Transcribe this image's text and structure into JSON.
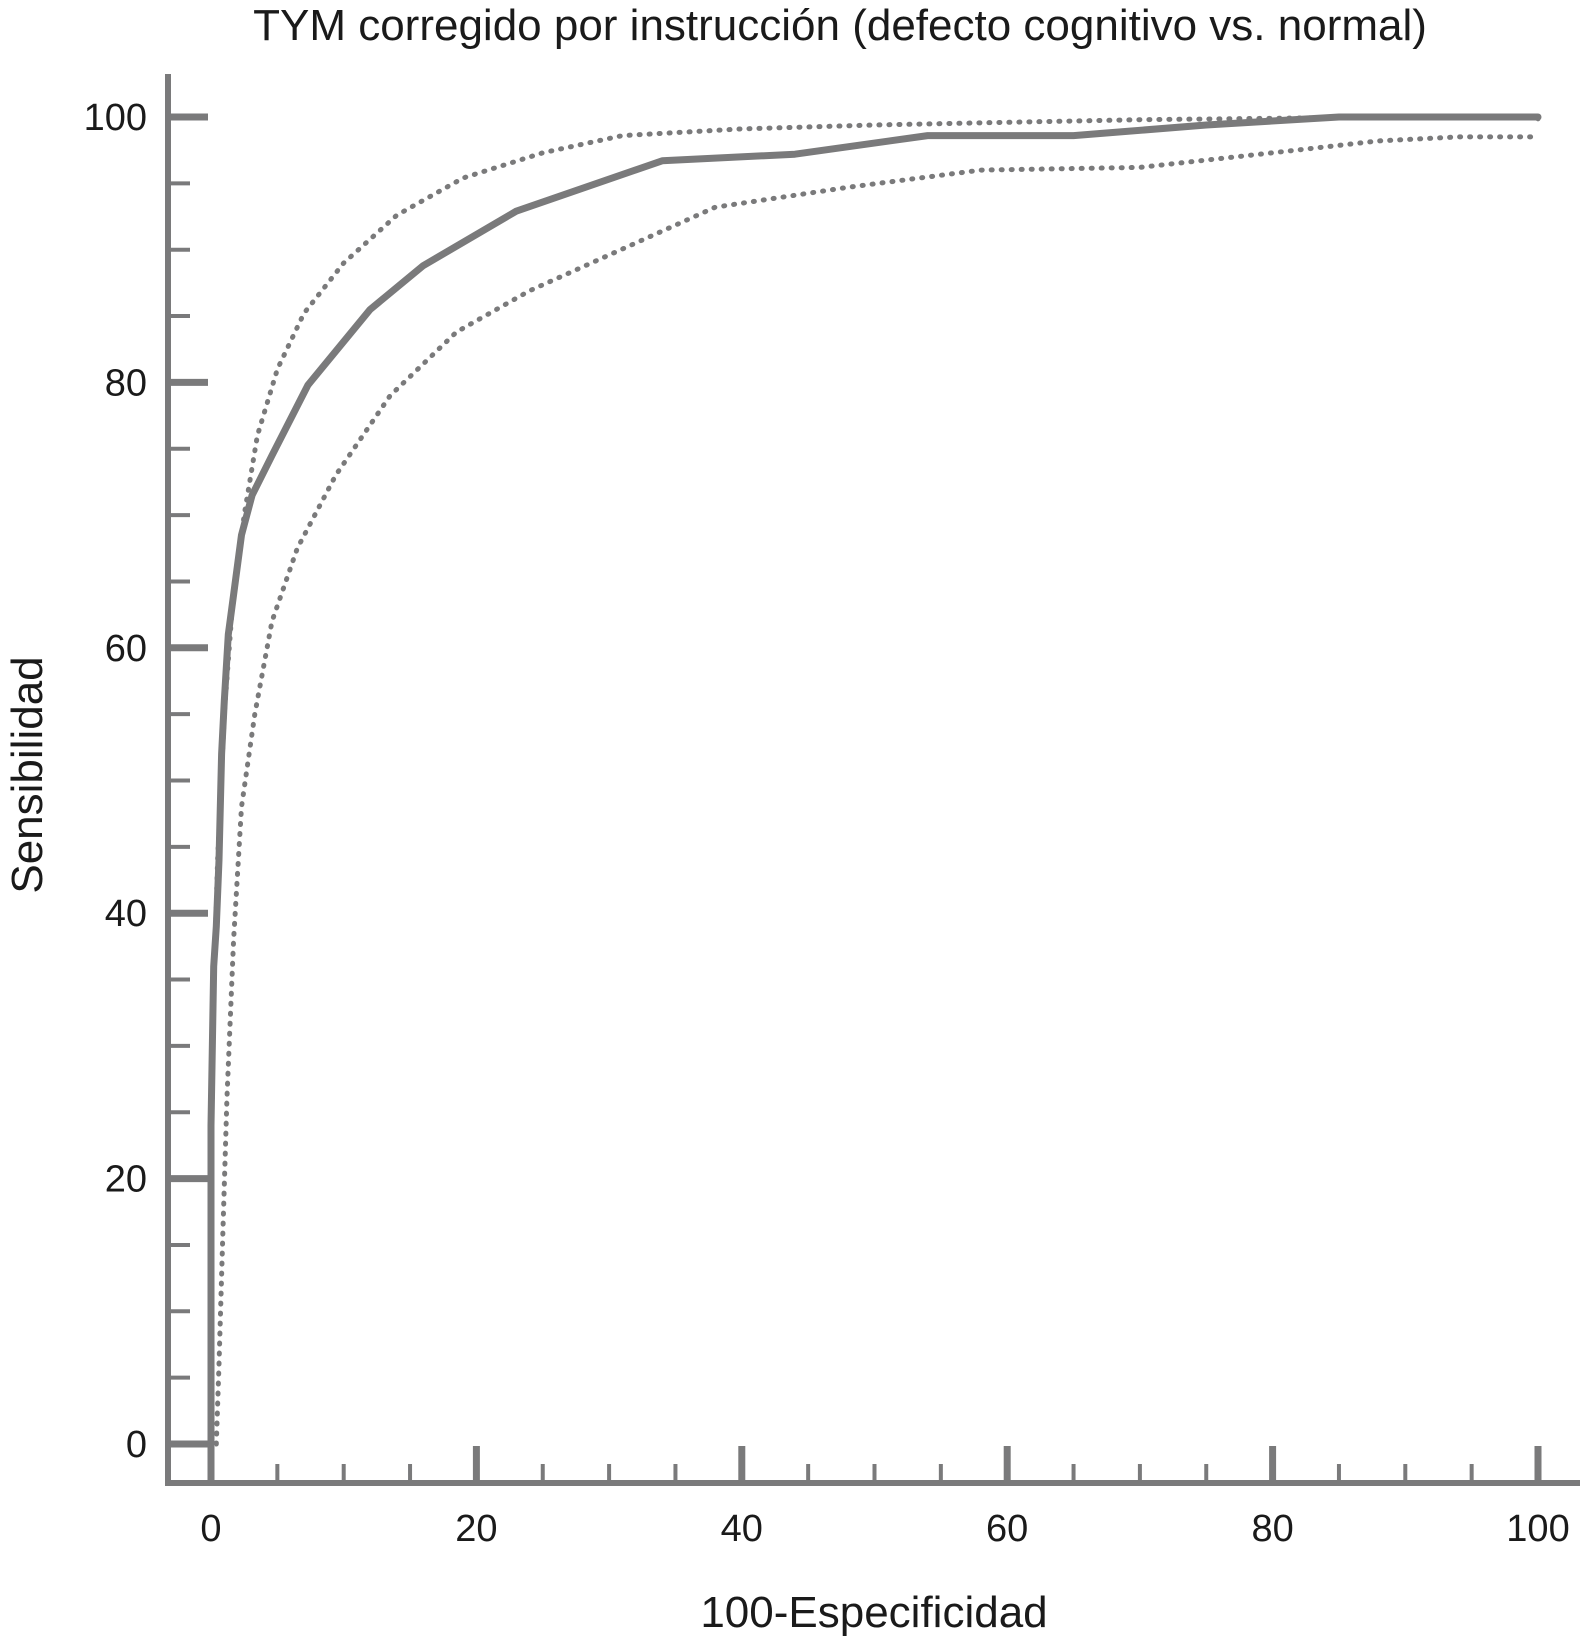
{
  "chart_data": {
    "type": "line",
    "title": "TYM corregido por instrucción (defecto cognitivo vs. normal)",
    "xlabel": "100-Especificidad",
    "ylabel": "Sensibilidad",
    "xlim": [
      0,
      100
    ],
    "ylim": [
      0,
      100
    ],
    "x_ticks": [
      "0",
      "20",
      "40",
      "60",
      "80",
      "100"
    ],
    "y_ticks": [
      "0",
      "20",
      "40",
      "60",
      "80",
      "100"
    ],
    "grid": false,
    "legend": "none",
    "colors": {
      "curve": "#7a7a7b",
      "axis": "#7a7a7b"
    },
    "series": [
      {
        "style": "solid",
        "x": [
          0,
          0,
          0.2,
          0.4,
          0.6,
          0.8,
          1,
          1.3,
          1.7,
          2.3,
          3.1,
          4.6,
          7.3,
          12,
          16,
          23,
          34,
          44,
          54,
          65,
          75,
          85,
          100
        ],
        "y": [
          0,
          24,
          36,
          39,
          44,
          52,
          56,
          61,
          64,
          68.5,
          71.5,
          74.5,
          79.8,
          85.5,
          88.8,
          92.9,
          96.7,
          97.2,
          98.6,
          98.6,
          99.4,
          100,
          100
        ]
      },
      {
        "style": "dotted",
        "x": [
          0,
          0.2,
          0.5,
          1,
          1.6,
          2.5,
          3.5,
          5,
          7,
          10,
          14,
          19,
          25,
          31,
          40,
          50,
          60,
          70,
          80,
          90,
          100,
          100
        ],
        "y": [
          20,
          34,
          44,
          55,
          63,
          70,
          76,
          81,
          85.2,
          89,
          92.6,
          95.4,
          97.3,
          98.6,
          99.1,
          99.4,
          99.6,
          99.8,
          99.9,
          100,
          100,
          99.2
        ]
      },
      {
        "style": "dotted",
        "x": [
          0.4,
          0.6,
          0.9,
          1.2,
          1.7,
          2.3,
          3.3,
          4.6,
          6.5,
          9.4,
          13.5,
          18.5,
          24,
          30,
          38,
          48,
          58,
          70,
          80,
          88,
          94,
          100
        ],
        "y": [
          0,
          6,
          16,
          26,
          38,
          48,
          55,
          62,
          67.5,
          73,
          79,
          83.8,
          86.9,
          89.6,
          93.2,
          94.7,
          96,
          96.2,
          97.3,
          98.2,
          98.5,
          98.5
        ]
      }
    ]
  }
}
